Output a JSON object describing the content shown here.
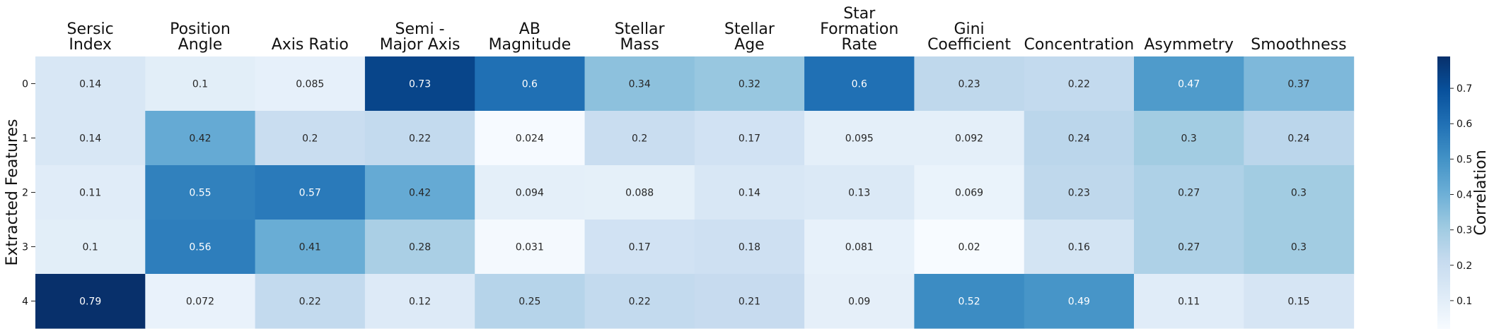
{
  "chart_data": {
    "type": "heatmap",
    "columns": [
      "Sersic Index",
      "Position Angle",
      "Axis Ratio",
      "Semi - Major Axis",
      "AB Magnitude",
      "Stellar Mass",
      "Stellar Age",
      "Star Formation Rate",
      "Gini Coefficient",
      "Concentration",
      "Asymmetry",
      "Smoothness"
    ],
    "column_label_lines": [
      [
        "Sersic",
        "Index"
      ],
      [
        "Position",
        "Angle"
      ],
      [
        "Axis Ratio"
      ],
      [
        "Semi -",
        "Major Axis"
      ],
      [
        "AB",
        "Magnitude"
      ],
      [
        "Stellar",
        "Mass"
      ],
      [
        "Stellar",
        "Age"
      ],
      [
        "Star",
        "Formation",
        "Rate"
      ],
      [
        "Gini",
        "Coefficient"
      ],
      [
        "Concentration"
      ],
      [
        "Asymmetry"
      ],
      [
        "Smoothness"
      ]
    ],
    "rows": [
      "0",
      "1",
      "2",
      "3",
      "4"
    ],
    "values": [
      [
        0.14,
        0.1,
        0.085,
        0.73,
        0.6,
        0.34,
        0.32,
        0.6,
        0.23,
        0.22,
        0.47,
        0.37
      ],
      [
        0.14,
        0.42,
        0.2,
        0.22,
        0.024,
        0.2,
        0.17,
        0.095,
        0.092,
        0.24,
        0.3,
        0.24
      ],
      [
        0.11,
        0.55,
        0.57,
        0.42,
        0.094,
        0.088,
        0.14,
        0.13,
        0.069,
        0.23,
        0.27,
        0.3
      ],
      [
        0.1,
        0.56,
        0.41,
        0.28,
        0.031,
        0.17,
        0.18,
        0.081,
        0.02,
        0.16,
        0.27,
        0.3
      ],
      [
        0.79,
        0.072,
        0.22,
        0.12,
        0.25,
        0.22,
        0.21,
        0.09,
        0.52,
        0.49,
        0.11,
        0.15
      ]
    ],
    "ylabel": "Extracted Features",
    "colorbar": {
      "label": "Correlation",
      "ticks": [
        0.1,
        0.2,
        0.3,
        0.4,
        0.5,
        0.6,
        0.7
      ],
      "range": [
        0.02,
        0.79
      ]
    },
    "colormap": "Blues",
    "colormap_stops": [
      "#f7fbff",
      "#deebf7",
      "#c6dbef",
      "#9ecae1",
      "#6baed6",
      "#4292c6",
      "#2171b5",
      "#08519c",
      "#08306b"
    ]
  }
}
